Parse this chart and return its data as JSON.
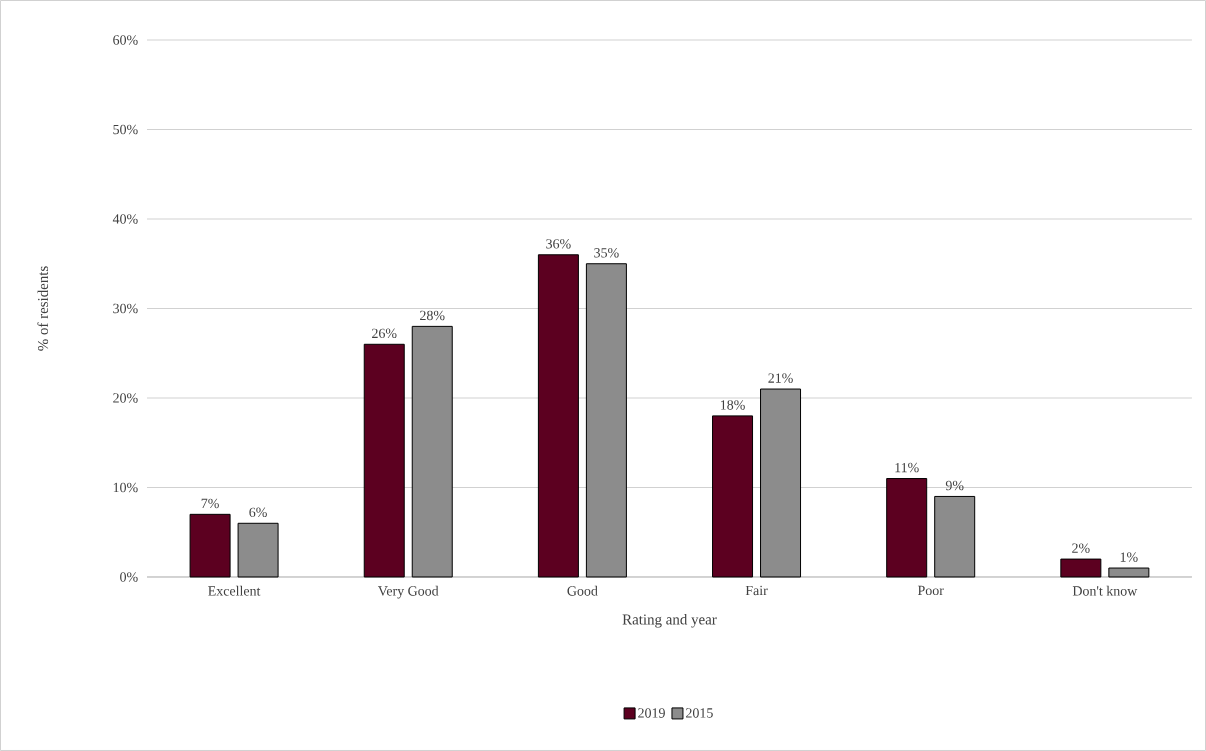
{
  "chart_data": {
    "type": "bar",
    "xlabel": "Rating and year",
    "ylabel": "% of residents",
    "categories": [
      "Excellent",
      "Very Good",
      "Good",
      "Fair",
      "Poor",
      "Don't know"
    ],
    "series": [
      {
        "name": "2019",
        "color": "#5c0020",
        "values": [
          7,
          26,
          36,
          18,
          11,
          2
        ],
        "value_labels": [
          "7%",
          "26%",
          "36%",
          "18%",
          "11%",
          "2%"
        ]
      },
      {
        "name": "2015",
        "color": "#8c8c8c",
        "values": [
          6,
          28,
          35,
          21,
          9,
          1
        ],
        "value_labels": [
          "6%",
          "28%",
          "35%",
          "21%",
          "9%",
          "1%"
        ]
      }
    ],
    "ylim": [
      0,
      60
    ],
    "yticks": [
      {
        "value": 0,
        "label": "0%"
      },
      {
        "value": 10,
        "label": "10%"
      },
      {
        "value": 20,
        "label": "20%"
      },
      {
        "value": 30,
        "label": "30%"
      },
      {
        "value": 40,
        "label": "40%"
      },
      {
        "value": 50,
        "label": "50%"
      },
      {
        "value": 60,
        "label": "60%"
      }
    ],
    "grid": "y",
    "legend": "bottom"
  }
}
